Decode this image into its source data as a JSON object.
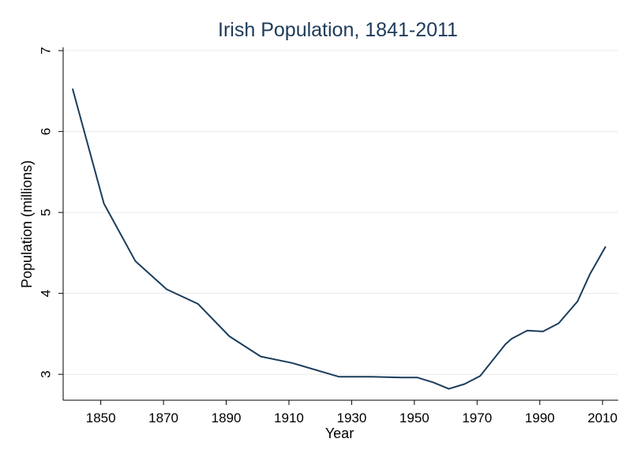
{
  "chart_data": {
    "type": "line",
    "title": "Irish Population, 1841-2011",
    "xlabel": "Year",
    "ylabel": "Population (millions)",
    "xlim": [
      1838,
      2015
    ],
    "ylim": [
      2.68,
      7.04
    ],
    "x_ticks": [
      1850,
      1870,
      1890,
      1910,
      1930,
      1950,
      1970,
      1990,
      2010
    ],
    "y_ticks": [
      3,
      4,
      5,
      6,
      7
    ],
    "grid": true,
    "legend": "none",
    "series": [
      {
        "color": "#1a3d5c",
        "x": [
          1841,
          1851,
          1861,
          1871,
          1881,
          1891,
          1901,
          1911,
          1926,
          1936,
          1946,
          1951,
          1956,
          1961,
          1966,
          1971,
          1979,
          1981,
          1986,
          1991,
          1996,
          2002,
          2006,
          2011
        ],
        "y": [
          6.53,
          5.11,
          4.4,
          4.05,
          3.87,
          3.47,
          3.22,
          3.14,
          2.97,
          2.97,
          2.96,
          2.96,
          2.9,
          2.82,
          2.88,
          2.98,
          3.37,
          3.44,
          3.54,
          3.53,
          3.63,
          3.9,
          4.24,
          4.58
        ]
      }
    ]
  }
}
